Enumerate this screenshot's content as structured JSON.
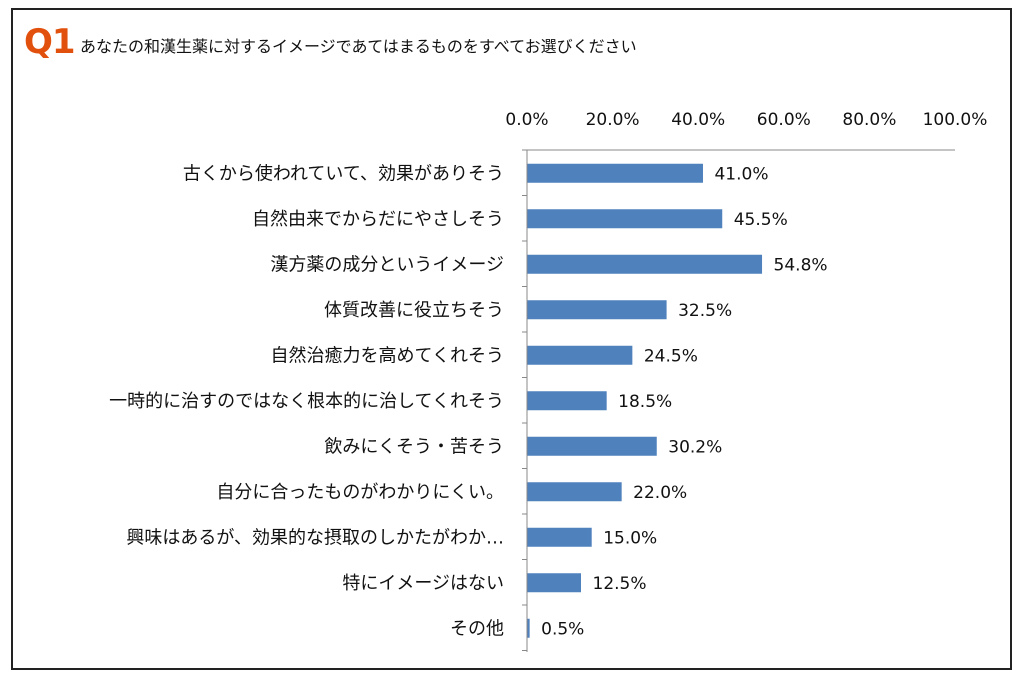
{
  "header": {
    "badge": "Q1",
    "question": "あなたの和漢生薬に対するイメージであてはまるものをすべてお選びください"
  },
  "colors": {
    "bar": "#4f81bd",
    "badge": "#e2500d",
    "axis": "#888888"
  },
  "chart_data": {
    "type": "bar",
    "orientation": "horizontal",
    "title": "",
    "xlabel": "",
    "ylabel": "",
    "xlim": [
      0,
      100
    ],
    "ticks": [
      "0.0%",
      "20.0%",
      "40.0%",
      "60.0%",
      "80.0%",
      "100.0%"
    ],
    "tick_values": [
      0,
      20,
      40,
      60,
      80,
      100
    ],
    "axis_position": "top",
    "grid": false,
    "categories": [
      "古くから使われていて、効果がありそう",
      "自然由来でからだにやさしそう",
      "漢方薬の成分というイメージ",
      "体質改善に役立ちそう",
      "自然治癒力を高めてくれそう",
      "一時的に治すのではなく根本的に治してくれそう",
      "飲みにくそう・苦そう",
      "自分に合ったものがわかりにくい。",
      "興味はあるが、効果的な摂取のしかたがわか…",
      "特にイメージはない",
      "その他"
    ],
    "values": [
      41.0,
      45.5,
      54.8,
      32.5,
      24.5,
      18.5,
      30.2,
      22.0,
      15.0,
      12.5,
      0.5
    ],
    "labels": [
      "41.0%",
      "45.5%",
      "54.8%",
      "32.5%",
      "24.5%",
      "18.5%",
      "30.2%",
      "22.0%",
      "15.0%",
      "12.5%",
      "0.5%"
    ]
  }
}
